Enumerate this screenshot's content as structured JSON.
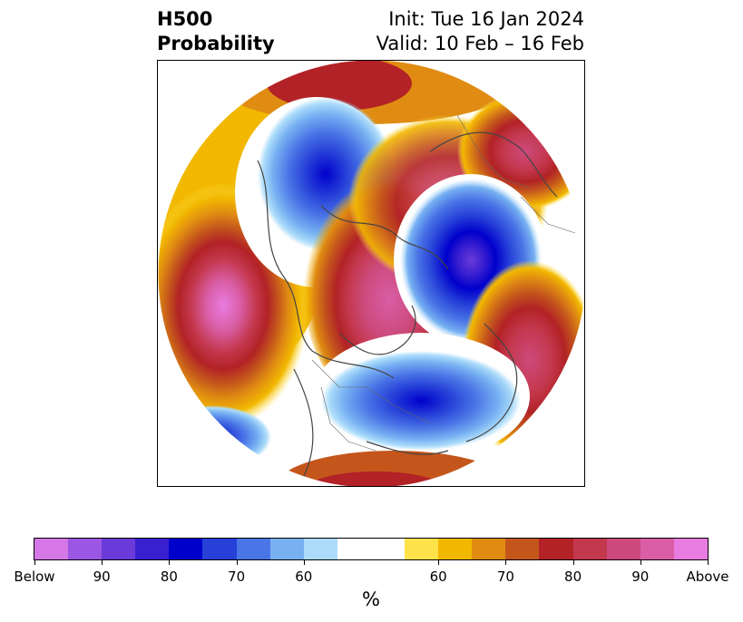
{
  "title": {
    "left_line1": "H500",
    "left_line2": "Probability",
    "right_line1": "Init: Tue 16 Jan 2024",
    "right_line2": "Valid: 10 Feb – 16 Feb"
  },
  "colorbar": {
    "unit": "%",
    "segments": [
      {
        "color": "#d677e8",
        "category": "below"
      },
      {
        "color": "#9b56e3",
        "category": "below"
      },
      {
        "color": "#6a3bd8",
        "category": "below"
      },
      {
        "color": "#3a1fd0",
        "category": "below"
      },
      {
        "color": "#0000cc",
        "category": "below"
      },
      {
        "color": "#2640d8",
        "category": "below"
      },
      {
        "color": "#4a75e6",
        "category": "below"
      },
      {
        "color": "#77b1f2",
        "category": "below"
      },
      {
        "color": "#acdcfa",
        "category": "below"
      },
      {
        "color": "#ffffff",
        "category": "neutral"
      },
      {
        "color": "#ffe24a",
        "category": "above"
      },
      {
        "color": "#f2b800",
        "category": "above"
      },
      {
        "color": "#e08c12",
        "category": "above"
      },
      {
        "color": "#c4561c",
        "category": "above"
      },
      {
        "color": "#b22226",
        "category": "above"
      },
      {
        "color": "#c4384e",
        "category": "above"
      },
      {
        "color": "#cc4a7c",
        "category": "above"
      },
      {
        "color": "#d95ea6",
        "category": "above"
      },
      {
        "color": "#e87ce0",
        "category": "above"
      }
    ],
    "ticks": [
      "Below",
      "90",
      "80",
      "70",
      "60",
      "60",
      "70",
      "80",
      "90",
      "Above"
    ]
  },
  "map": {
    "projection": "north-polar stereographic",
    "field": "500 hPa height probability",
    "features": [
      {
        "name": "positive-anomaly-gulf-of-alaska",
        "category": "above",
        "peak": "Above"
      },
      {
        "name": "positive-anomaly-north-pole-greenland",
        "category": "above",
        "peak": "Above"
      },
      {
        "name": "positive-anomaly-siberia",
        "category": "above",
        "peak": "90"
      },
      {
        "name": "positive-anomaly-western-europe",
        "category": "above",
        "peak": "90"
      },
      {
        "name": "negative-anomaly-eastern-siberia",
        "category": "below",
        "peak": "90"
      },
      {
        "name": "negative-anomaly-scandinavia-barents",
        "category": "below",
        "peak": "Below"
      },
      {
        "name": "negative-anomaly-eastern-north-america",
        "category": "below",
        "peak": "90"
      }
    ]
  }
}
